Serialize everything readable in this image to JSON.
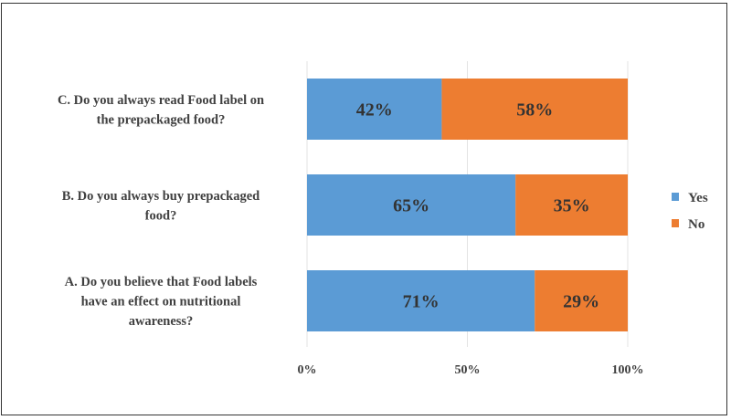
{
  "chart_data": {
    "type": "bar",
    "orientation": "horizontal",
    "stacked": "percent",
    "title": "",
    "categories": [
      [
        "C. Do you always read Food label on",
        "the prepackaged food?"
      ],
      [
        "B. Do you always buy prepackaged",
        "food?"
      ],
      [
        "A. Do you believe that Food labels",
        "have an effect on nutritional",
        "awareness?"
      ]
    ],
    "series": [
      {
        "name": "Yes",
        "color": "#5B9BD5",
        "values": [
          42,
          65,
          71
        ],
        "labels": [
          "42%",
          "65%",
          "71%"
        ]
      },
      {
        "name": "No",
        "color": "#ED7D31",
        "values": [
          58,
          35,
          29
        ],
        "labels": [
          "58%",
          "35%",
          "29%"
        ]
      }
    ],
    "xlim": [
      0,
      100
    ],
    "xticks": [
      0,
      50,
      100
    ],
    "xtick_labels": [
      "0%",
      "50%",
      "100%"
    ],
    "grid": true,
    "legend": "right",
    "xlabel": "",
    "ylabel": ""
  }
}
